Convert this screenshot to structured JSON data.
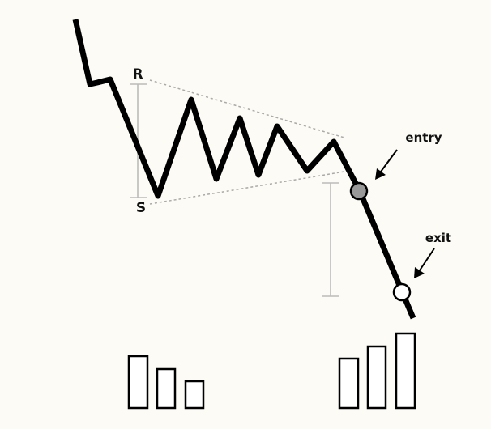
{
  "labels": {
    "resistance": "R",
    "support": "S",
    "entry": "entry",
    "exit": "exit"
  },
  "colors": {
    "background": "#fcfbf5",
    "price_line": "#000000",
    "trendline": "#aaaaaa",
    "range_marker": "#bbbbbb",
    "entry_marker": "#999999",
    "exit_marker": "#ffffff",
    "volume_bar_fill": "#ffffff",
    "volume_bar_stroke": "#000000"
  },
  "markers": {
    "entry_icon": "filled-circle",
    "exit_icon": "hollow-circle"
  }
}
